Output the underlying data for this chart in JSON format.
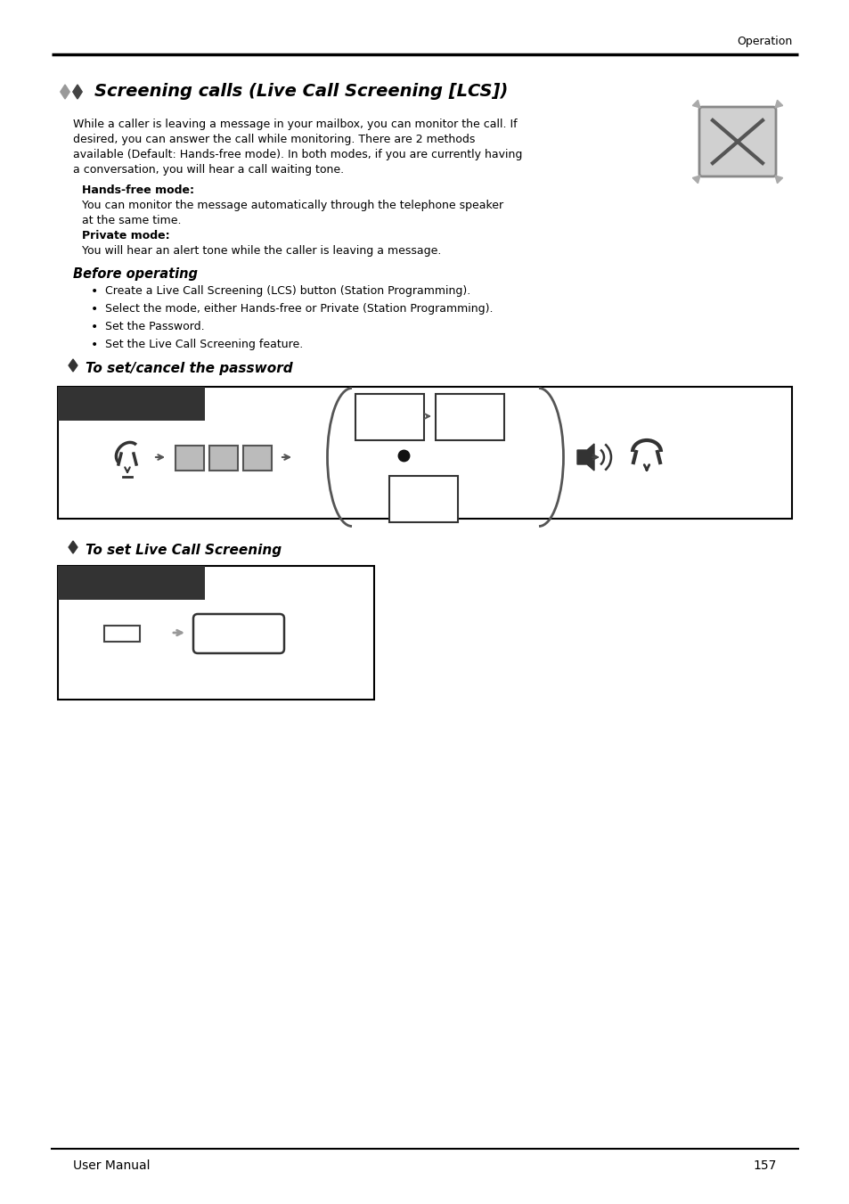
{
  "page_header": "Operation",
  "page_number": "157",
  "page_label": "User Manual",
  "title": "Screening calls (Live Call Screening [LCS])",
  "body_text_lines": [
    "While a caller is leaving a message in your mailbox, you can monitor the call. If",
    "desired, you can answer the call while monitoring. There are 2 methods",
    "available (Default: Hands-free mode). In both modes, if you are currently having",
    "a conversation, you will hear a call waiting tone."
  ],
  "hf_label": "Hands-free mode:",
  "hf_text_lines": [
    "You can monitor the message automatically through the telephone speaker",
    "at the same time."
  ],
  "pm_label": "Private mode:",
  "pm_text": "You will hear an alert tone while the caller is leaving a message.",
  "before_op_title": "Before operating",
  "bullet1": "Create a Live Call Screening (LCS) button (Station Programming).",
  "bullet2": "Select the mode, either Hands-free or Private (Station Programming).",
  "bullet3": "Set the Password.",
  "bullet4": "Set the Live Call Screening feature.",
  "section1_title": "◆ To set/cancel the password",
  "section2_title": "◆ To set Live Call Screening",
  "bg_color": "#ffffff",
  "text_color": "#000000",
  "dark_box_color": "#333333",
  "gray_color": "#888888",
  "light_gray": "#cccccc"
}
